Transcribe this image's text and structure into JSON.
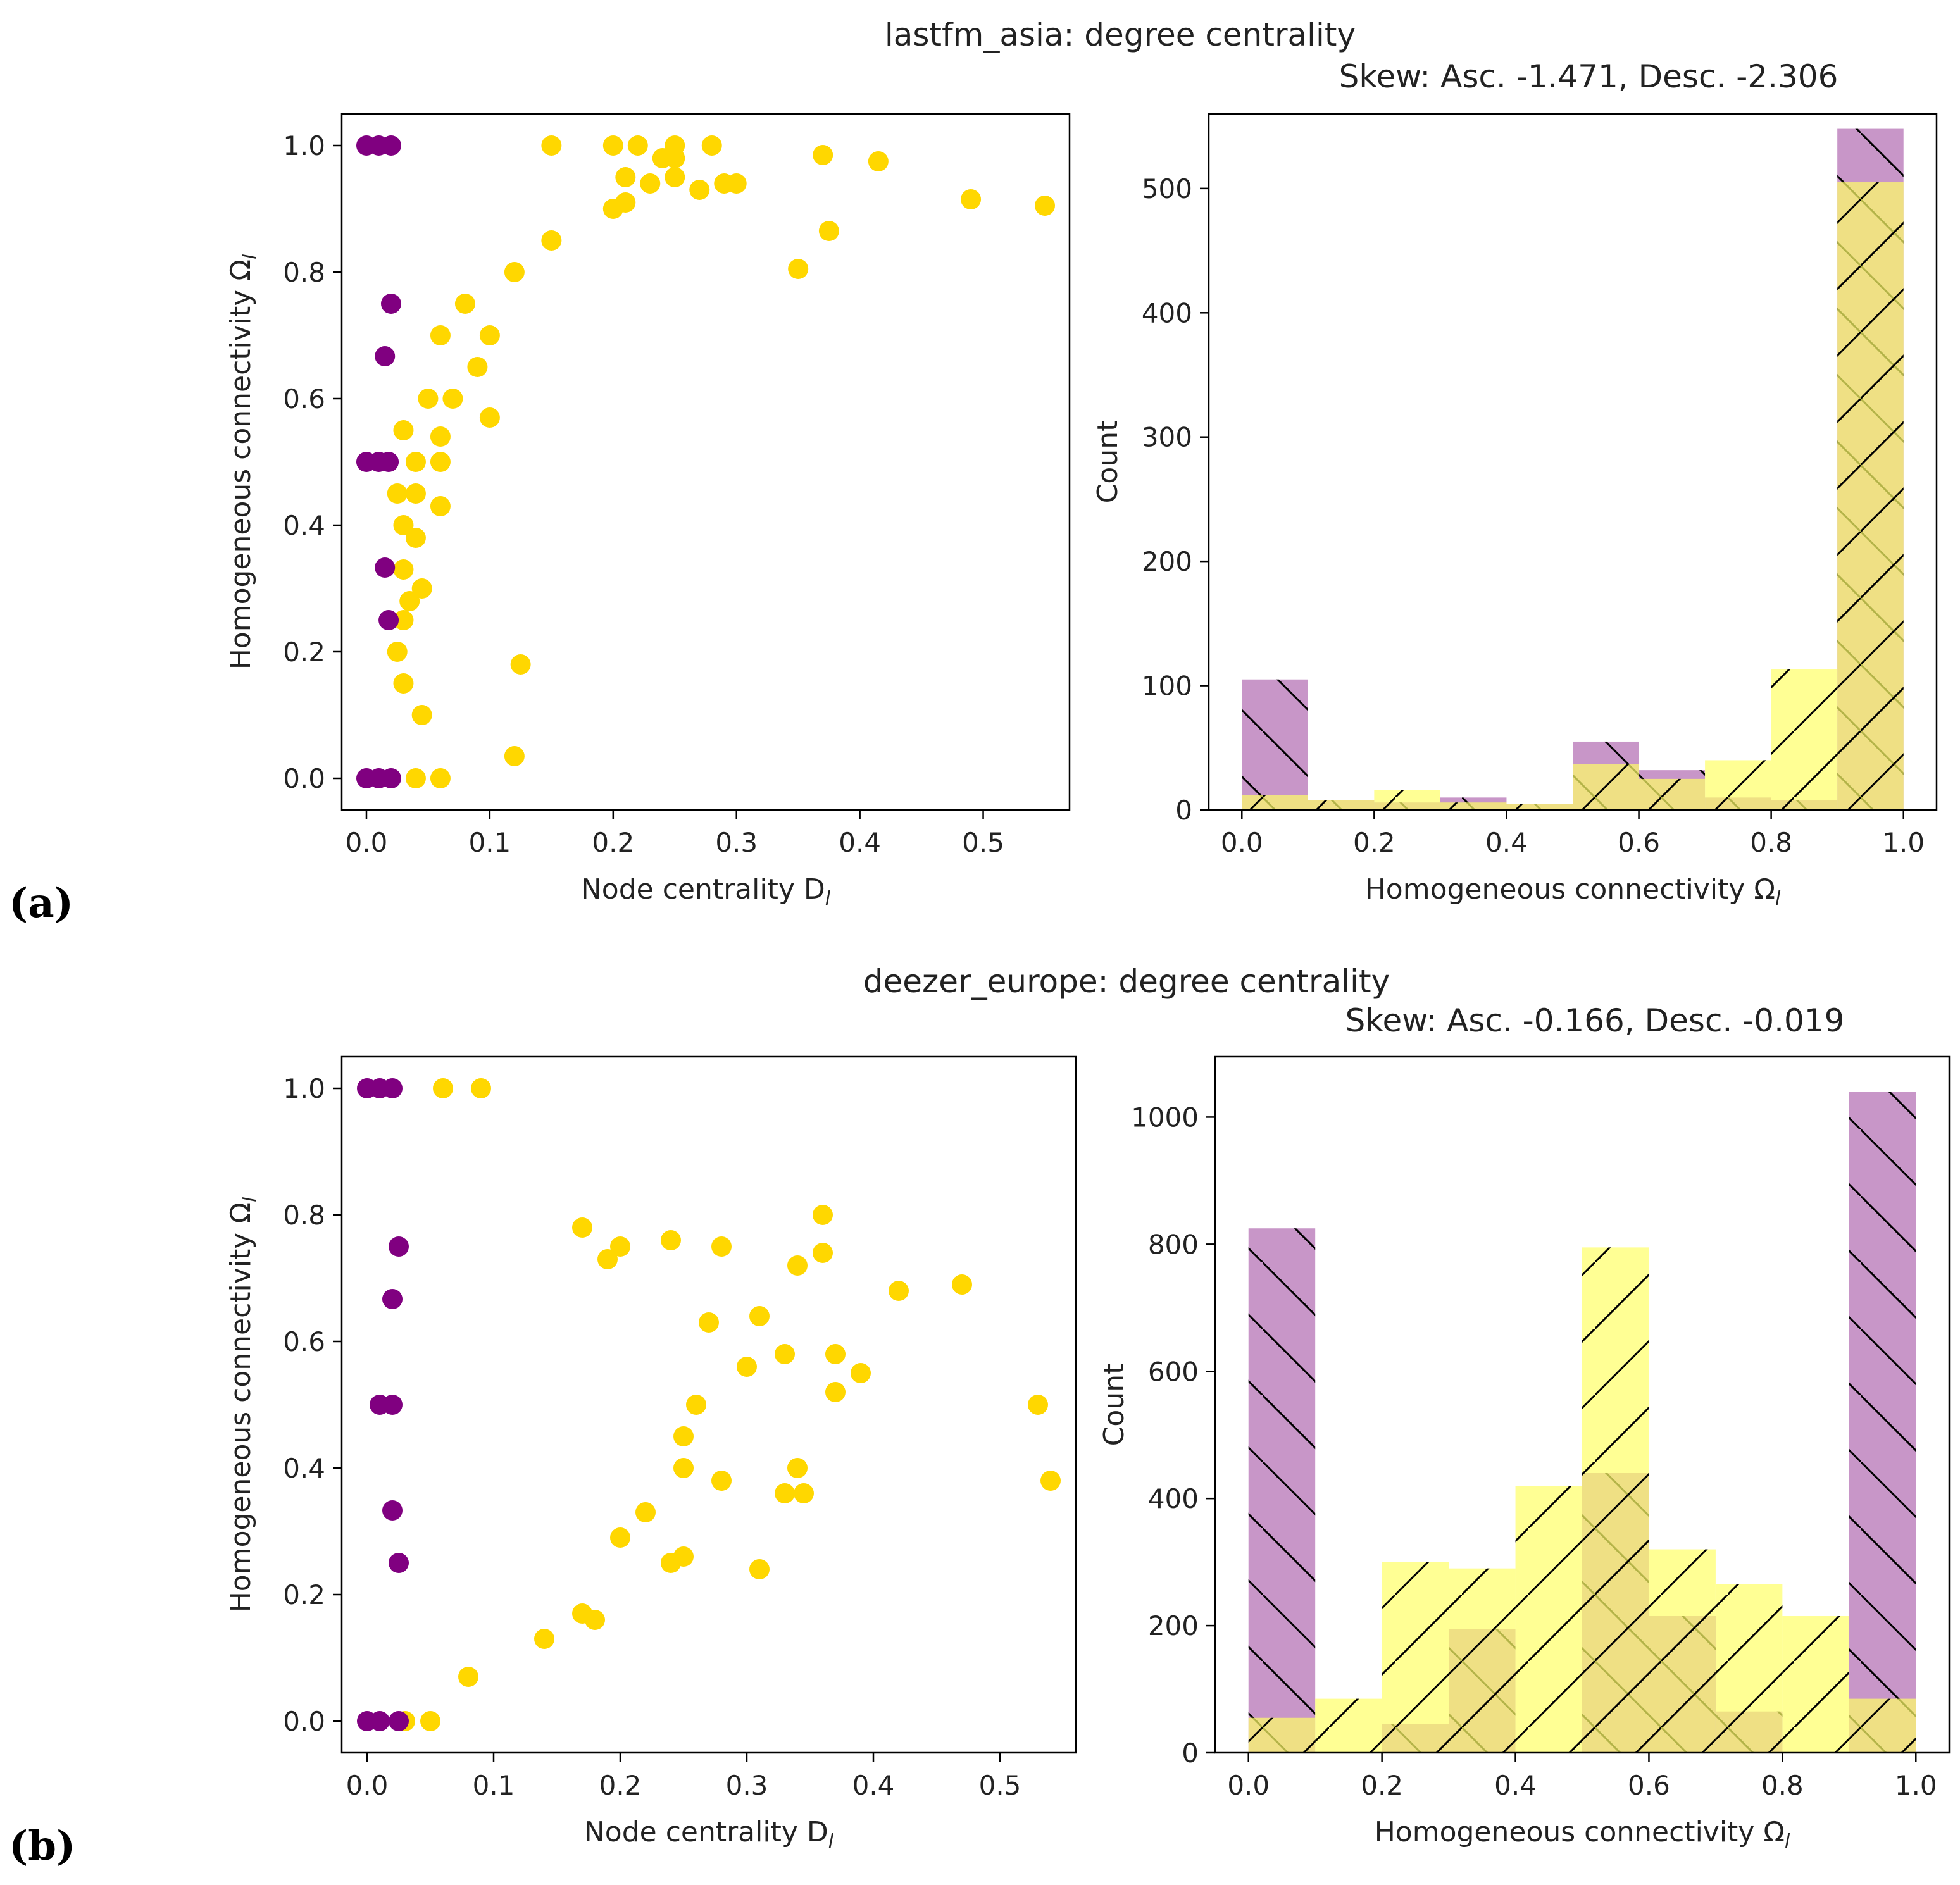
{
  "colors": {
    "purple": "#800080",
    "yellow": "#FFD700",
    "purple_hist": "#C896C8",
    "yellow_hist": "#FFFF66",
    "overlap": "#E6CC47"
  },
  "panel_labels": [
    "(a)",
    "(b)"
  ],
  "chart_data": [
    {
      "type": "scatter",
      "figure_title": "lastfm_asia: degree centrality",
      "xlabel": "Node centrality D_l",
      "ylabel": "Homogeneous connectivity Ω_l",
      "xlim": [
        -0.02,
        0.57
      ],
      "ylim": [
        -0.05,
        1.05
      ],
      "xticks": [
        0.0,
        0.1,
        0.2,
        0.3,
        0.4,
        0.5
      ],
      "yticks": [
        0.0,
        0.2,
        0.4,
        0.6,
        0.8,
        1.0
      ],
      "series": [
        {
          "name": "yellow",
          "color_key": "yellow",
          "points": [
            [
              0.15,
              1.0
            ],
            [
              0.2,
              1.0
            ],
            [
              0.22,
              1.0
            ],
            [
              0.25,
              1.0
            ],
            [
              0.28,
              1.0
            ],
            [
              0.24,
              0.98
            ],
            [
              0.25,
              0.98
            ],
            [
              0.21,
              0.95
            ],
            [
              0.29,
              0.94
            ],
            [
              0.27,
              0.93
            ],
            [
              0.3,
              0.94
            ],
            [
              0.23,
              0.94
            ],
            [
              0.21,
              0.91
            ],
            [
              0.25,
              0.95
            ],
            [
              0.2,
              0.9
            ],
            [
              0.37,
              0.985
            ],
            [
              0.415,
              0.975
            ],
            [
              0.49,
              0.915
            ],
            [
              0.55,
              0.905
            ],
            [
              0.375,
              0.865
            ],
            [
              0.35,
              0.805
            ],
            [
              0.15,
              0.85
            ],
            [
              0.12,
              0.8
            ],
            [
              0.1,
              0.7
            ],
            [
              0.08,
              0.75
            ],
            [
              0.09,
              0.65
            ],
            [
              0.06,
              0.7
            ],
            [
              0.07,
              0.6
            ],
            [
              0.1,
              0.57
            ],
            [
              0.05,
              0.6
            ],
            [
              0.06,
              0.54
            ],
            [
              0.06,
              0.5
            ],
            [
              0.06,
              0.43
            ],
            [
              0.04,
              0.45
            ],
            [
              0.04,
              0.5
            ],
            [
              0.03,
              0.4
            ],
            [
              0.04,
              0.38
            ],
            [
              0.03,
              0.33
            ],
            [
              0.045,
              0.3
            ],
            [
              0.035,
              0.28
            ],
            [
              0.03,
              0.25
            ],
            [
              0.025,
              0.2
            ],
            [
              0.03,
              0.15
            ],
            [
              0.045,
              0.1
            ],
            [
              0.125,
              0.18
            ],
            [
              0.12,
              0.035
            ],
            [
              0.06,
              0.0
            ],
            [
              0.04,
              0.0
            ],
            [
              0.025,
              0.45
            ],
            [
              0.03,
              0.55
            ]
          ]
        },
        {
          "name": "purple",
          "color_key": "purple",
          "points": [
            [
              0.0,
              1.0
            ],
            [
              0.01,
              1.0
            ],
            [
              0.02,
              1.0
            ],
            [
              0.02,
              0.75
            ],
            [
              0.015,
              0.667
            ],
            [
              0.0,
              0.5
            ],
            [
              0.01,
              0.5
            ],
            [
              0.018,
              0.5
            ],
            [
              0.015,
              0.333
            ],
            [
              0.018,
              0.25
            ],
            [
              0.0,
              0.0
            ],
            [
              0.01,
              0.0
            ],
            [
              0.02,
              0.0
            ]
          ]
        }
      ],
      "hist": {
        "title": "Skew: Asc. -1.471, Desc. -2.306",
        "xlabel": "Homogeneous connectivity Ω_l",
        "ylabel": "Count",
        "xlim": [
          -0.05,
          1.05
        ],
        "ylim": [
          0,
          560
        ],
        "xticks": [
          0.0,
          0.2,
          0.4,
          0.6,
          0.8,
          1.0
        ],
        "yticks": [
          0,
          100,
          200,
          300,
          400,
          500
        ],
        "bins": [
          0.0,
          0.1,
          0.2,
          0.3,
          0.4,
          0.5,
          0.6,
          0.7,
          0.8,
          0.9,
          1.0
        ],
        "series": [
          {
            "name": "Asc.",
            "color_key": "purple_hist",
            "hatch": "backslash",
            "values": [
              105,
              8,
              6,
              10,
              5,
              55,
              32,
              10,
              8,
              548
            ]
          },
          {
            "name": "Desc.",
            "color_key": "yellow_hist",
            "hatch": "slash",
            "values": [
              12,
              8,
              16,
              6,
              5,
              37,
              25,
              40,
              113,
              505
            ]
          }
        ]
      }
    },
    {
      "type": "scatter",
      "figure_title": "deezer_europe: degree centrality",
      "xlabel": "Node centrality D_l",
      "ylabel": "Homogeneous connectivity Ω_l",
      "xlim": [
        -0.02,
        0.56
      ],
      "ylim": [
        -0.05,
        1.05
      ],
      "xticks": [
        0.0,
        0.1,
        0.2,
        0.3,
        0.4,
        0.5
      ],
      "yticks": [
        0.0,
        0.2,
        0.4,
        0.6,
        0.8,
        1.0
      ],
      "series": [
        {
          "name": "yellow",
          "color_key": "yellow",
          "points": [
            [
              0.06,
              1.0
            ],
            [
              0.09,
              1.0
            ],
            [
              0.2,
              0.75
            ],
            [
              0.24,
              0.76
            ],
            [
              0.28,
              0.75
            ],
            [
              0.34,
              0.72
            ],
            [
              0.36,
              0.8
            ],
            [
              0.36,
              0.74
            ],
            [
              0.42,
              0.68
            ],
            [
              0.47,
              0.69
            ],
            [
              0.31,
              0.64
            ],
            [
              0.33,
              0.58
            ],
            [
              0.37,
              0.58
            ],
            [
              0.39,
              0.55
            ],
            [
              0.37,
              0.52
            ],
            [
              0.53,
              0.5
            ],
            [
              0.54,
              0.38
            ],
            [
              0.34,
              0.4
            ],
            [
              0.33,
              0.36
            ],
            [
              0.345,
              0.36
            ],
            [
              0.31,
              0.24
            ],
            [
              0.28,
              0.38
            ],
            [
              0.3,
              0.56
            ],
            [
              0.26,
              0.5
            ],
            [
              0.25,
              0.4
            ],
            [
              0.24,
              0.25
            ],
            [
              0.25,
              0.26
            ],
            [
              0.2,
              0.29
            ],
            [
              0.17,
              0.17
            ],
            [
              0.18,
              0.16
            ],
            [
              0.14,
              0.13
            ],
            [
              0.08,
              0.07
            ],
            [
              0.19,
              0.73
            ],
            [
              0.17,
              0.78
            ],
            [
              0.25,
              0.45
            ],
            [
              0.22,
              0.33
            ],
            [
              0.27,
              0.63
            ],
            [
              0.03,
              0.0
            ],
            [
              0.05,
              0.0
            ]
          ]
        },
        {
          "name": "purple",
          "color_key": "purple",
          "points": [
            [
              0.0,
              1.0
            ],
            [
              0.01,
              1.0
            ],
            [
              0.02,
              1.0
            ],
            [
              0.025,
              0.75
            ],
            [
              0.02,
              0.667
            ],
            [
              0.01,
              0.5
            ],
            [
              0.02,
              0.5
            ],
            [
              0.02,
              0.333
            ],
            [
              0.025,
              0.25
            ],
            [
              0.0,
              0.0
            ],
            [
              0.01,
              0.0
            ],
            [
              0.025,
              0.0
            ]
          ]
        }
      ],
      "hist": {
        "title": "Skew: Asc. -0.166, Desc. -0.019",
        "xlabel": "Homogeneous connectivity Ω_l",
        "ylabel": "Count",
        "xlim": [
          -0.05,
          1.05
        ],
        "ylim": [
          0,
          1095
        ],
        "xticks": [
          0.0,
          0.2,
          0.4,
          0.6,
          0.8,
          1.0
        ],
        "yticks": [
          0,
          200,
          400,
          600,
          800,
          1000
        ],
        "bins": [
          0.0,
          0.1,
          0.2,
          0.3,
          0.4,
          0.5,
          0.6,
          0.7,
          0.8,
          0.9,
          1.0
        ],
        "series": [
          {
            "name": "Asc.",
            "color_key": "purple_hist",
            "hatch": "backslash",
            "values": [
              825,
              0,
              45,
              195,
              0,
              440,
              215,
              65,
              0,
              1040
            ]
          },
          {
            "name": "Desc.",
            "color_key": "yellow_hist",
            "hatch": "slash",
            "values": [
              55,
              85,
              300,
              290,
              420,
              795,
              320,
              265,
              215,
              85
            ]
          }
        ]
      }
    }
  ]
}
